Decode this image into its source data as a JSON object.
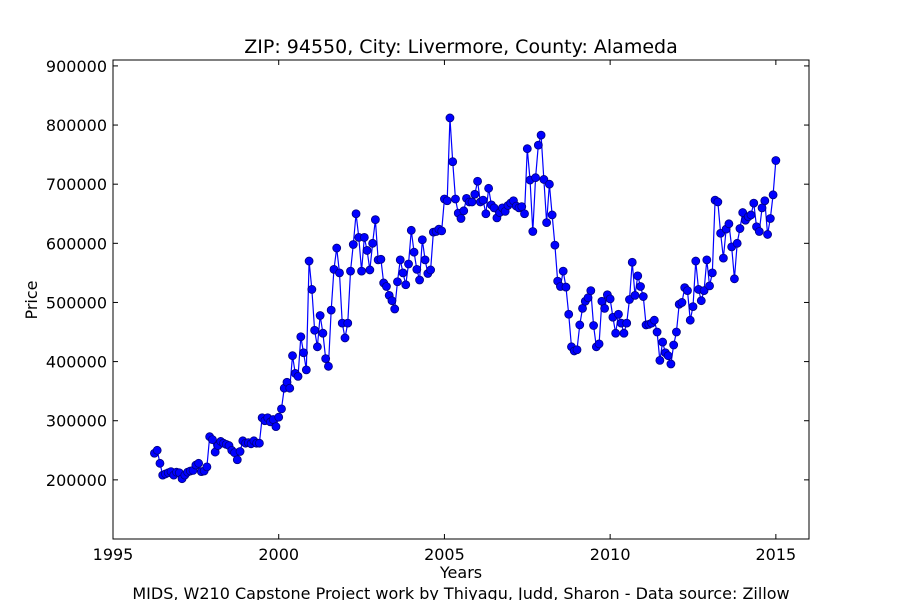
{
  "chart_data": {
    "type": "line",
    "title": "ZIP: 94550, City: Livermore, County: Alameda",
    "xlabel": "Years",
    "ylabel": "Price",
    "footer": "MIDS, W210 Capstone Project work by Thiyagu, Judd, Sharon  -  Data source: Zillow",
    "xlim": [
      1995,
      2016
    ],
    "ylim": [
      100000,
      910000
    ],
    "x_ticks": [
      1995,
      2000,
      2005,
      2010,
      2015
    ],
    "x_tick_labels": [
      "1995",
      "2000",
      "2005",
      "2010",
      "2015"
    ],
    "y_ticks": [
      200000,
      300000,
      400000,
      500000,
      600000,
      700000,
      800000,
      900000
    ],
    "y_tick_labels": [
      "200000",
      "300000",
      "400000",
      "500000",
      "600000",
      "700000",
      "800000",
      "900000"
    ],
    "grid": false,
    "legend": "none",
    "line_color": "#0000ff",
    "marker_fill": "#0000ff",
    "marker_edge": "#00007f",
    "series": [
      {
        "start_year": 1996.25,
        "step": 0.083333,
        "values": [
          245000,
          250000,
          228000,
          208000,
          210000,
          212000,
          214000,
          208000,
          213000,
          212000,
          202000,
          208000,
          213000,
          215000,
          216000,
          225000,
          228000,
          214000,
          215000,
          222000,
          273000,
          268000,
          247000,
          258000,
          265000,
          262000,
          260000,
          258000,
          250000,
          246000,
          234000,
          248000,
          266000,
          262000,
          263000,
          261000,
          266000,
          262000,
          262000,
          305000,
          300000,
          305000,
          298000,
          302000,
          290000,
          306000,
          320000,
          355000,
          365000,
          355000,
          410000,
          380000,
          375000,
          442000,
          415000,
          386000,
          570000,
          522000,
          453000,
          425000,
          478000,
          448000,
          405000,
          392000,
          487000,
          556000,
          592000,
          550000,
          465000,
          440000,
          465000,
          553000,
          598000,
          650000,
          610000,
          553000,
          610000,
          588000,
          555000,
          600000,
          640000,
          572000,
          573000,
          533000,
          527000,
          512000,
          503000,
          489000,
          535000,
          572000,
          550000,
          530000,
          565000,
          622000,
          585000,
          556000,
          538000,
          606000,
          572000,
          549000,
          555000,
          619000,
          620000,
          624000,
          621000,
          675000,
          672000,
          812000,
          738000,
          675000,
          651000,
          642000,
          655000,
          676000,
          670000,
          670000,
          683000,
          705000,
          670000,
          673000,
          650000,
          693000,
          665000,
          660000,
          643000,
          652000,
          660000,
          654000,
          664000,
          668000,
          672000,
          663000,
          660000,
          662000,
          650000,
          760000,
          707000,
          620000,
          711000,
          766000,
          783000,
          708000,
          635000,
          700000,
          648000,
          597000,
          536000,
          527000,
          553000,
          526000,
          480000,
          425000,
          418000,
          420000,
          462000,
          490000,
          502000,
          508000,
          520000,
          461000,
          425000,
          430000,
          502000,
          490000,
          513000,
          506000,
          475000,
          448000,
          480000,
          465000,
          448000,
          465000,
          505000,
          568000,
          512000,
          545000,
          527000,
          510000,
          462000,
          463000,
          465000,
          470000,
          450000,
          402000,
          433000,
          415000,
          410000,
          396000,
          428000,
          450000,
          497000,
          500000,
          525000,
          520000,
          470000,
          493000,
          570000,
          522000,
          503000,
          520000,
          572000,
          528000,
          550000,
          673000,
          670000,
          617000,
          575000,
          624000,
          633000,
          594000,
          540000,
          600000,
          625000,
          652000,
          639000,
          645000,
          648000,
          668000,
          628000,
          620000,
          660000,
          672000,
          615000,
          642000,
          682000,
          740000
        ]
      }
    ]
  }
}
